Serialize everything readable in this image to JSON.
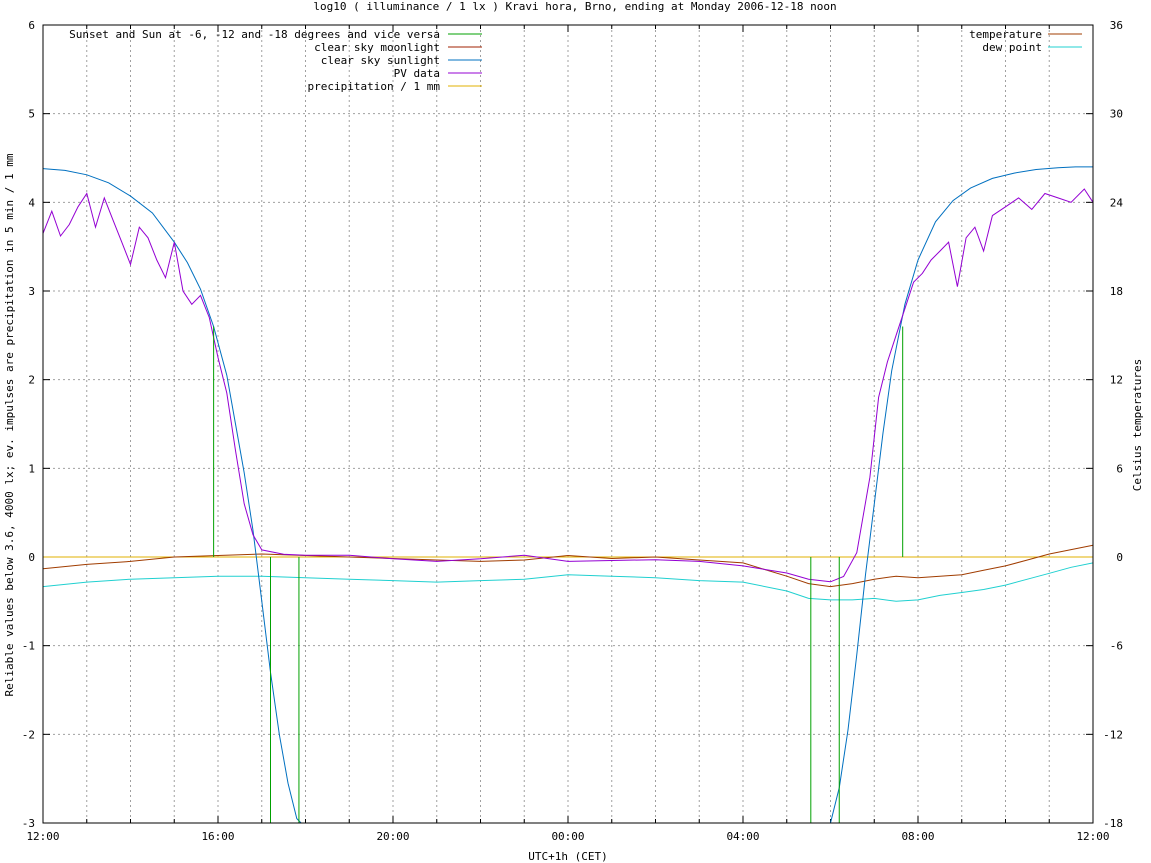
{
  "chart_data": {
    "type": "line",
    "title": "log10 ( illuminance / 1 lx ) Kravi hora, Brno, ending at Monday 2006-12-18 noon",
    "xlabel": "UTC+1h (CET)",
    "ylabel": "Reliable values below 3.6, 4000 lx; ev. impulses are precipitation in 5 min / 1 mm",
    "y2label": "Celsius temperatures",
    "xlim": [
      0,
      24
    ],
    "ylim": [
      -3,
      6
    ],
    "y2lim": [
      -18,
      36
    ],
    "x_ticks": [
      {
        "pos": 0,
        "label": "12:00"
      },
      {
        "pos": 4,
        "label": "16:00"
      },
      {
        "pos": 8,
        "label": "20:00"
      },
      {
        "pos": 12,
        "label": "00:00"
      },
      {
        "pos": 16,
        "label": "04:00"
      },
      {
        "pos": 20,
        "label": "08:00"
      },
      {
        "pos": 24,
        "label": "12:00"
      }
    ],
    "x_minor_grid": [
      1,
      2,
      3,
      5,
      6,
      7,
      9,
      10,
      11,
      13,
      14,
      15,
      17,
      18,
      19,
      21,
      22,
      23
    ],
    "y_ticks": [
      -3,
      -2,
      -1,
      0,
      1,
      2,
      3,
      4,
      5,
      6
    ],
    "y2_ticks": [
      -18,
      -12,
      -6,
      0,
      6,
      12,
      18,
      24,
      30,
      36
    ],
    "grid": true,
    "legend_left": [
      {
        "name": "Sunset and Sun at -6, -12 and -18 degrees and vice versa",
        "color": "#00a000"
      },
      {
        "name": "clear sky moonlight",
        "color": "#a02000"
      },
      {
        "name": "clear sky sunlight",
        "color": "#0070c0"
      },
      {
        "name": "PV data",
        "color": "#9400d3"
      },
      {
        "name": "precipitation / 1 mm",
        "color": "#e0b000"
      }
    ],
    "legend_right": [
      {
        "name": "temperature",
        "color": "#a03c00"
      },
      {
        "name": "dew point",
        "color": "#20d0d0"
      }
    ],
    "sun_events": [
      {
        "x": 3.9,
        "y_start": 0,
        "y_end": 2.6
      },
      {
        "x": 5.2,
        "y_start": 0,
        "y_end": -3
      },
      {
        "x": 5.85,
        "y_start": 0,
        "y_end": -3
      },
      {
        "x": 17.55,
        "y_start": 0,
        "y_end": -3
      },
      {
        "x": 18.2,
        "y_start": 0,
        "y_end": -3
      },
      {
        "x": 19.65,
        "y_start": 0,
        "y_end": 2.6
      }
    ],
    "series": [
      {
        "name": "clear sky sunlight",
        "axis": "y",
        "color": "#0070c0",
        "x": [
          0,
          0.5,
          1,
          1.5,
          2,
          2.5,
          3,
          3.3,
          3.6,
          3.9,
          4.2,
          4.4,
          4.6,
          4.8,
          5.0,
          5.2,
          5.4,
          5.6,
          5.8,
          5.9,
          18.0,
          18.2,
          18.4,
          18.6,
          18.8,
          19.0,
          19.2,
          19.4,
          19.7,
          20.0,
          20.4,
          20.8,
          21.2,
          21.7,
          22.2,
          22.7,
          23.2,
          23.6,
          24.0
        ],
        "y": [
          4.38,
          4.36,
          4.31,
          4.22,
          4.07,
          3.88,
          3.55,
          3.32,
          3.02,
          2.6,
          2.05,
          1.5,
          0.95,
          0.3,
          -0.5,
          -1.3,
          -2.0,
          -2.55,
          -2.95,
          -3.05,
          -3.05,
          -2.6,
          -1.95,
          -1.1,
          -0.2,
          0.6,
          1.4,
          2.1,
          2.85,
          3.35,
          3.78,
          4.02,
          4.16,
          4.27,
          4.33,
          4.37,
          4.39,
          4.4,
          4.4
        ]
      },
      {
        "name": "PV data",
        "axis": "y",
        "color": "#9400d3",
        "x": [
          0,
          0.2,
          0.4,
          0.6,
          0.8,
          1.0,
          1.2,
          1.4,
          1.6,
          1.8,
          2.0,
          2.2,
          2.4,
          2.6,
          2.8,
          3.0,
          3.2,
          3.4,
          3.6,
          3.8,
          4.0,
          4.2,
          4.4,
          4.6,
          4.8,
          5.0,
          5.5,
          6.0,
          7.0,
          8.0,
          9.0,
          10.0,
          11.0,
          12.0,
          13.0,
          14.0,
          15.0,
          16.0,
          17.0,
          17.5,
          18.0,
          18.3,
          18.6,
          18.9,
          19.1,
          19.3,
          19.5,
          19.7,
          19.9,
          20.1,
          20.3,
          20.5,
          20.7,
          20.9,
          21.1,
          21.3,
          21.5,
          21.7,
          22.0,
          22.3,
          22.6,
          22.9,
          23.2,
          23.5,
          23.8,
          24.0
        ],
        "y": [
          3.65,
          3.9,
          3.62,
          3.75,
          3.95,
          4.1,
          3.72,
          4.05,
          3.8,
          3.55,
          3.3,
          3.72,
          3.6,
          3.35,
          3.15,
          3.55,
          3.0,
          2.85,
          2.95,
          2.7,
          2.25,
          1.85,
          1.2,
          0.6,
          0.25,
          0.08,
          0.03,
          0.02,
          0.02,
          -0.02,
          -0.05,
          -0.02,
          0.02,
          -0.05,
          -0.04,
          -0.03,
          -0.05,
          -0.1,
          -0.18,
          -0.25,
          -0.28,
          -0.22,
          0.05,
          0.9,
          1.8,
          2.2,
          2.5,
          2.8,
          3.1,
          3.2,
          3.35,
          3.45,
          3.55,
          3.05,
          3.6,
          3.72,
          3.45,
          3.85,
          3.95,
          4.05,
          3.92,
          4.1,
          4.05,
          4.0,
          4.15,
          4.0
        ]
      },
      {
        "name": "temperature",
        "axis": "y2",
        "color": "#a03c00",
        "x": [
          0,
          1,
          2,
          3,
          4,
          5,
          6,
          7,
          8,
          9,
          10,
          11,
          12,
          13,
          14,
          15,
          16,
          17,
          17.5,
          18,
          18.5,
          19,
          19.5,
          20,
          20.5,
          21,
          21.5,
          22,
          22.5,
          23,
          23.5,
          24
        ],
        "y": [
          -0.8,
          -0.5,
          -0.3,
          0.0,
          0.1,
          0.2,
          0.1,
          0.0,
          -0.1,
          -0.2,
          -0.3,
          -0.2,
          0.1,
          -0.1,
          0.0,
          -0.2,
          -0.4,
          -1.3,
          -1.8,
          -2.0,
          -1.8,
          -1.5,
          -1.3,
          -1.4,
          -1.3,
          -1.2,
          -0.9,
          -0.6,
          -0.2,
          0.2,
          0.5,
          0.8
        ]
      },
      {
        "name": "dew point",
        "axis": "y2",
        "color": "#20d0d0",
        "x": [
          0,
          1,
          2,
          3,
          4,
          5,
          6,
          7,
          8,
          9,
          10,
          11,
          12,
          13,
          14,
          15,
          16,
          17,
          17.5,
          18,
          18.5,
          19,
          19.5,
          20,
          20.5,
          21,
          21.5,
          22,
          22.5,
          23,
          23.5,
          24
        ],
        "y": [
          -2.0,
          -1.7,
          -1.5,
          -1.4,
          -1.3,
          -1.3,
          -1.4,
          -1.5,
          -1.6,
          -1.7,
          -1.6,
          -1.5,
          -1.2,
          -1.3,
          -1.4,
          -1.6,
          -1.7,
          -2.3,
          -2.8,
          -2.9,
          -2.9,
          -2.8,
          -3.0,
          -2.9,
          -2.6,
          -2.4,
          -2.2,
          -1.9,
          -1.5,
          -1.1,
          -0.7,
          -0.4
        ]
      },
      {
        "name": "precipitation / 1 mm",
        "axis": "y",
        "color": "#e0b000",
        "x": [
          0,
          24
        ],
        "y": [
          0,
          0
        ]
      }
    ]
  }
}
